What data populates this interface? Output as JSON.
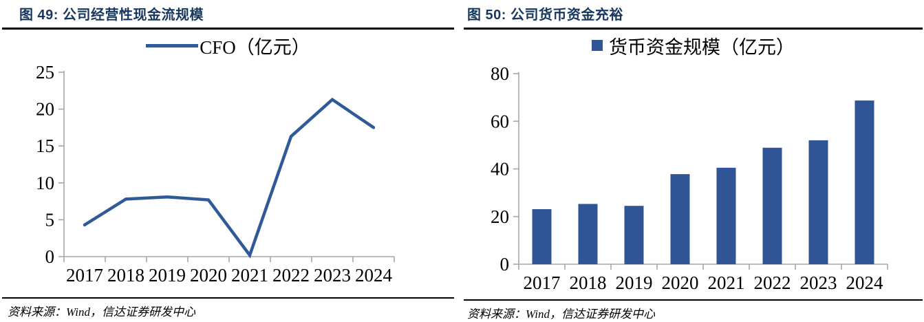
{
  "figures": [
    {
      "caption": "图 49: 公司经营性现金流规模",
      "source_label": "资料来源：Wind，信达证券研发中心"
    },
    {
      "caption": "图 50: 公司货币资金充裕",
      "source_label": "资料来源：Wind，信达证券研发中心"
    }
  ],
  "chart_data": [
    {
      "type": "line",
      "title": "公司经营性现金流规模",
      "legend": "CFO（亿元）",
      "legend_position": "top",
      "categories": [
        "2017",
        "2018",
        "2019",
        "2020",
        "2021",
        "2022",
        "2023",
        "2024"
      ],
      "values": [
        4.3,
        7.8,
        8.1,
        7.7,
        0.2,
        16.3,
        21.3,
        17.5
      ],
      "ylim": [
        0,
        25
      ],
      "yticks": [
        0,
        5,
        10,
        15,
        20,
        25
      ],
      "grid": false,
      "color": "#2F5A97",
      "axis_color": "#A6A6A6"
    },
    {
      "type": "bar",
      "title": "公司货币资金充裕",
      "legend": "货币资金规模（亿元）",
      "legend_position": "top",
      "categories": [
        "2017",
        "2018",
        "2019",
        "2020",
        "2021",
        "2022",
        "2023",
        "2024"
      ],
      "values": [
        23.1,
        25.3,
        24.5,
        37.8,
        40.5,
        48.9,
        52.0,
        68.7
      ],
      "ylim": [
        0,
        80
      ],
      "yticks": [
        0,
        20,
        40,
        60,
        80
      ],
      "grid": false,
      "color": "#2F5597",
      "axis_color": "#A6A6A6"
    }
  ]
}
